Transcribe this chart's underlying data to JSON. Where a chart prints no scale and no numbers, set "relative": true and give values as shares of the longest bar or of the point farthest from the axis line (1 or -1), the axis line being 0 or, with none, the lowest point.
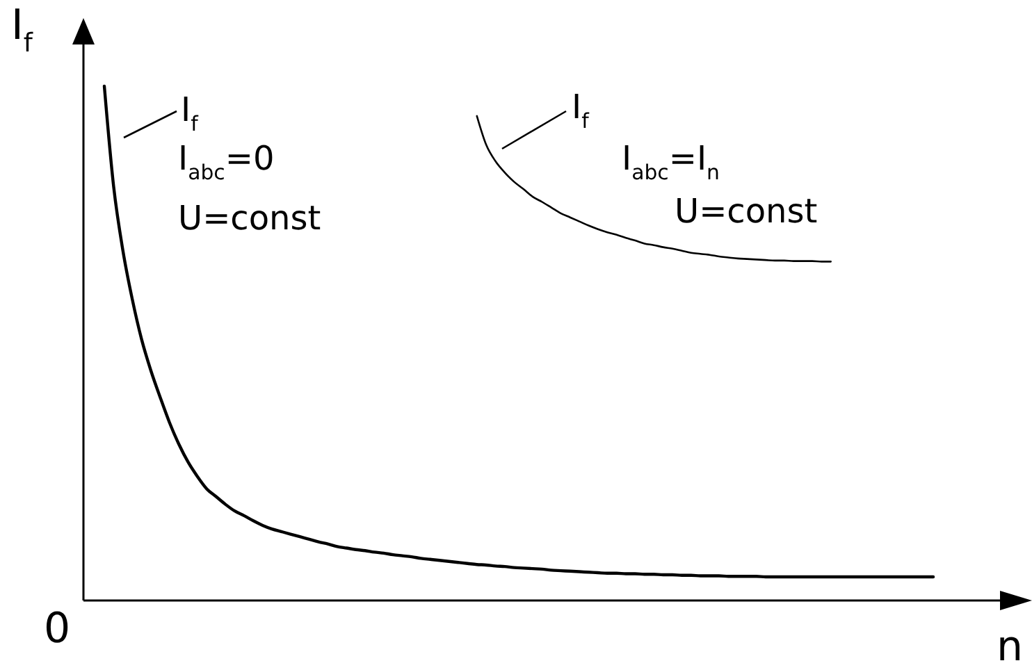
{
  "chart_data": {
    "type": "line",
    "xlabel": "n",
    "ylabel": "I$_{f}$",
    "relative": true,
    "categories": [
      null,
      null,
      null,
      null,
      null,
      null,
      null,
      null,
      null,
      null,
      null,
      null,
      null,
      null,
      null,
      null,
      null,
      null,
      null,
      null,
      null,
      null,
      null,
      null,
      null,
      null,
      null,
      null,
      null,
      null,
      null,
      null,
      null,
      null,
      null,
      null,
      null,
      null,
      null,
      null,
      null,
      null,
      null,
      null,
      null,
      null,
      null,
      null,
      null,
      null,
      null,
      null,
      null,
      null,
      null,
      null,
      null,
      null,
      null,
      null,
      null,
      null,
      null,
      null,
      null,
      null,
      null,
      null,
      null,
      null,
      null,
      null,
      null,
      null,
      null,
      null,
      null,
      null,
      null,
      null,
      null,
      null,
      null,
      null,
      null,
      null,
      null,
      null,
      null,
      null
    ],
    "series": [
      {
        "name": "I$_{f}$",
        "color": "#000000",
        "values": [
          1,
          0.805,
          0.68,
          0.586,
          0.508,
          0.447,
          0.395,
          0.346,
          0.304,
          0.269,
          0.241,
          0.217,
          0.202,
          0.187,
          0.174,
          0.165,
          0.155,
          0.146,
          0.139,
          0.134,
          0.129,
          0.124,
          0.119,
          0.114,
          0.11,
          0.105,
          0.102,
          0.099,
          0.097,
          0.094,
          0.092,
          0.089,
          0.087,
          0.085,
          0.082,
          0.08,
          0.078,
          0.076,
          0.074,
          0.072,
          0.07,
          0.069,
          0.067,
          0.066,
          0.064,
          0.063,
          0.062,
          0.061,
          0.059,
          0.058,
          0.057,
          0.056,
          0.055,
          0.054,
          0.053,
          0.053,
          0.052,
          0.052,
          0.051,
          0.051,
          0.05,
          0.05,
          0.049,
          0.049,
          0.048,
          0.048,
          0.048,
          0.047,
          0.047,
          0.047,
          0.047,
          0.046,
          0.046,
          0.046,
          0.046,
          0.046,
          0.046,
          0.046,
          0.046,
          0.046,
          0.046,
          0.046,
          0.046,
          0.046,
          0.046,
          0.046,
          0.046,
          0.046,
          0.046,
          0.046
        ]
      },
      {
        "name": "I$_{f}$",
        "color": "#000000",
        "values": [
          null,
          null,
          null,
          null,
          null,
          null,
          null,
          null,
          null,
          null,
          null,
          null,
          null,
          null,
          null,
          null,
          null,
          null,
          null,
          null,
          null,
          null,
          null,
          null,
          null,
          null,
          null,
          null,
          null,
          null,
          null,
          null,
          null,
          null,
          null,
          null,
          null,
          null,
          null,
          null,
          0.942,
          0.886,
          0.854,
          0.832,
          0.814,
          0.8,
          0.785,
          0.775,
          0.764,
          0.753,
          0.745,
          0.737,
          0.729,
          0.722,
          0.716,
          0.711,
          0.705,
          0.7,
          0.694,
          0.691,
          0.687,
          0.684,
          0.68,
          0.676,
          0.674,
          0.672,
          0.669,
          0.667,
          0.665,
          0.664,
          0.663,
          0.662,
          0.661,
          0.661,
          0.66,
          0.66,
          0.66,
          0.659,
          0.659,
          null,
          null,
          null,
          null,
          null,
          null,
          null,
          null,
          null,
          null,
          null
        ]
      }
    ],
    "annotations": [
      "0",
      "I$_{abc}$=0",
      "U=const",
      "I$_{abc}$=I$_{n}$",
      "U=const"
    ]
  }
}
